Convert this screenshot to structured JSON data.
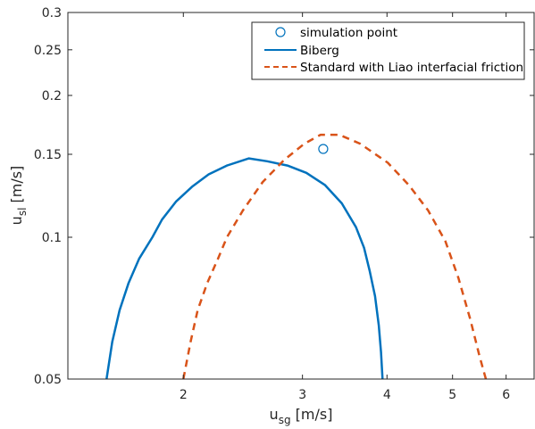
{
  "chart_data": {
    "type": "line",
    "xscale": "log",
    "yscale": "log",
    "xlim": [
      1.35,
      6.6
    ],
    "ylim": [
      0.05,
      0.3
    ],
    "xticks": [
      2,
      3,
      4,
      5,
      6
    ],
    "xtick_labels": [
      "2",
      "3",
      "4",
      "5",
      "6"
    ],
    "yticks": [
      0.05,
      0.1,
      0.15,
      0.2,
      0.25,
      0.3
    ],
    "ytick_labels": [
      "0.05",
      "0.1",
      "0.15",
      "0.2",
      "0.25",
      "0.3"
    ],
    "xlabel_main": "u",
    "xlabel_sub": "sg",
    "xlabel_unit": " [m/s]",
    "ylabel_main": "u",
    "ylabel_sub": "sl",
    "ylabel_unit": " [m/s]",
    "legend_position": "top-right",
    "grid": false,
    "series": [
      {
        "name": "simulation point",
        "kind": "marker",
        "color": "#0072BD",
        "points": [
          [
            3.22,
            0.154
          ]
        ]
      },
      {
        "name": "Biberg",
        "kind": "line",
        "color": "#0072BD",
        "points": [
          [
            1.54,
            0.05
          ],
          [
            1.57,
            0.06
          ],
          [
            1.61,
            0.07
          ],
          [
            1.66,
            0.08
          ],
          [
            1.72,
            0.09
          ],
          [
            1.8,
            0.1
          ],
          [
            1.86,
            0.109
          ],
          [
            1.95,
            0.119
          ],
          [
            2.06,
            0.128
          ],
          [
            2.18,
            0.136
          ],
          [
            2.32,
            0.142
          ],
          [
            2.5,
            0.147
          ],
          [
            2.66,
            0.145
          ],
          [
            2.85,
            0.142
          ],
          [
            3.04,
            0.137
          ],
          [
            3.24,
            0.129
          ],
          [
            3.43,
            0.118
          ],
          [
            3.6,
            0.105
          ],
          [
            3.7,
            0.095
          ],
          [
            3.77,
            0.085
          ],
          [
            3.84,
            0.075
          ],
          [
            3.89,
            0.065
          ],
          [
            3.92,
            0.057
          ],
          [
            3.94,
            0.05
          ]
        ]
      },
      {
        "name": "Standard with Liao interfacial friction",
        "kind": "dashed",
        "color": "#D95319",
        "points": [
          [
            2.0,
            0.05
          ],
          [
            2.05,
            0.06
          ],
          [
            2.1,
            0.07
          ],
          [
            2.17,
            0.08
          ],
          [
            2.25,
            0.09
          ],
          [
            2.32,
            0.1
          ],
          [
            2.45,
            0.114
          ],
          [
            2.62,
            0.131
          ],
          [
            2.82,
            0.146
          ],
          [
            3.02,
            0.158
          ],
          [
            3.19,
            0.165
          ],
          [
            3.4,
            0.165
          ],
          [
            3.65,
            0.158
          ],
          [
            4.01,
            0.144
          ],
          [
            4.31,
            0.129
          ],
          [
            4.6,
            0.114
          ],
          [
            4.88,
            0.098
          ],
          [
            5.1,
            0.082
          ],
          [
            5.31,
            0.067
          ],
          [
            5.48,
            0.056
          ],
          [
            5.6,
            0.05
          ]
        ]
      }
    ]
  }
}
